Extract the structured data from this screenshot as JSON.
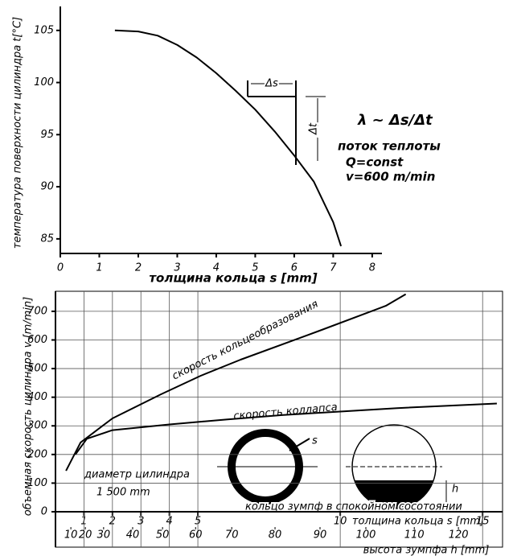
{
  "chart_data": [
    {
      "type": "line",
      "xlabel": "толщина кольца s [mm]",
      "ylabel": "температура поверхности цилиндра t[°C]",
      "xlim": [
        0,
        8.25
      ],
      "ylim": [
        83.6,
        107.3
      ],
      "xticks": [
        0,
        1,
        2,
        3,
        4,
        5,
        6,
        7,
        8
      ],
      "yticks": [
        85,
        90,
        95,
        100,
        105
      ],
      "grid": false,
      "series": [
        {
          "color": "#000000",
          "x": [
            1.4,
            2,
            2.5,
            3,
            3.5,
            4,
            4.5,
            5,
            5.5,
            6,
            6.5,
            7,
            7.2
          ],
          "values": [
            105,
            104.9,
            104.5,
            103.6,
            102.4,
            100.9,
            99.2,
            97.4,
            95.3,
            93,
            90.5,
            86.6,
            84.3
          ]
        }
      ],
      "annotations": [
        "Δs",
        "Δt",
        "λ ~ Δs/Δt",
        "поток теплоты",
        "Q=const",
        "v=600 m/min"
      ]
    },
    {
      "type": "line",
      "xlabel": "толщина кольца s [mm]",
      "x2label": "высота зумпфа h [mm]",
      "ylabel": "объемная скорость цилиндра v [m/min]",
      "xlim": [
        0,
        15.7
      ],
      "ylim": [
        0,
        770
      ],
      "xticks": [
        1,
        2,
        3,
        4,
        5,
        10,
        15
      ],
      "x2ticks": [
        {
          "value": 0.54,
          "label": "10"
        },
        {
          "value": 1.05,
          "label": "20"
        },
        {
          "value": 1.69,
          "label": "30"
        },
        {
          "value": 2.71,
          "label": "40"
        },
        {
          "value": 3.76,
          "label": "50"
        },
        {
          "value": 4.92,
          "label": "60"
        },
        {
          "value": 6.19,
          "label": "70"
        },
        {
          "value": 7.71,
          "label": "80"
        },
        {
          "value": 9.29,
          "label": "90"
        },
        {
          "value": 10.9,
          "label": "100"
        },
        {
          "value": 12.6,
          "label": "110"
        },
        {
          "value": 14.15,
          "label": "120"
        }
      ],
      "yticks": [
        0,
        100,
        200,
        300,
        400,
        500,
        600,
        700
      ],
      "grid": true,
      "series": [
        {
          "name": "скорость кольцеобразования",
          "color": "#000000",
          "x": [
            0.37,
            0.88,
            2.0,
            3.7,
            5.1,
            6.5,
            9.35,
            11.6,
            12.3
          ],
          "values": [
            143,
            242,
            326,
            410,
            475,
            531,
            635,
            719,
            760
          ]
        },
        {
          "name": "скорость коллапса",
          "color": "#000000",
          "x": [
            0.7,
            1.1,
            2,
            4,
            6,
            8,
            10,
            12,
            15.5
          ],
          "values": [
            200,
            255,
            285,
            305,
            322,
            338,
            350,
            362,
            378
          ]
        }
      ],
      "annotations": [
        "диаметр цилиндра",
        "1 500 mm",
        "кольцо зумпф в спокойном сосотоянии",
        "s",
        "h"
      ]
    }
  ]
}
